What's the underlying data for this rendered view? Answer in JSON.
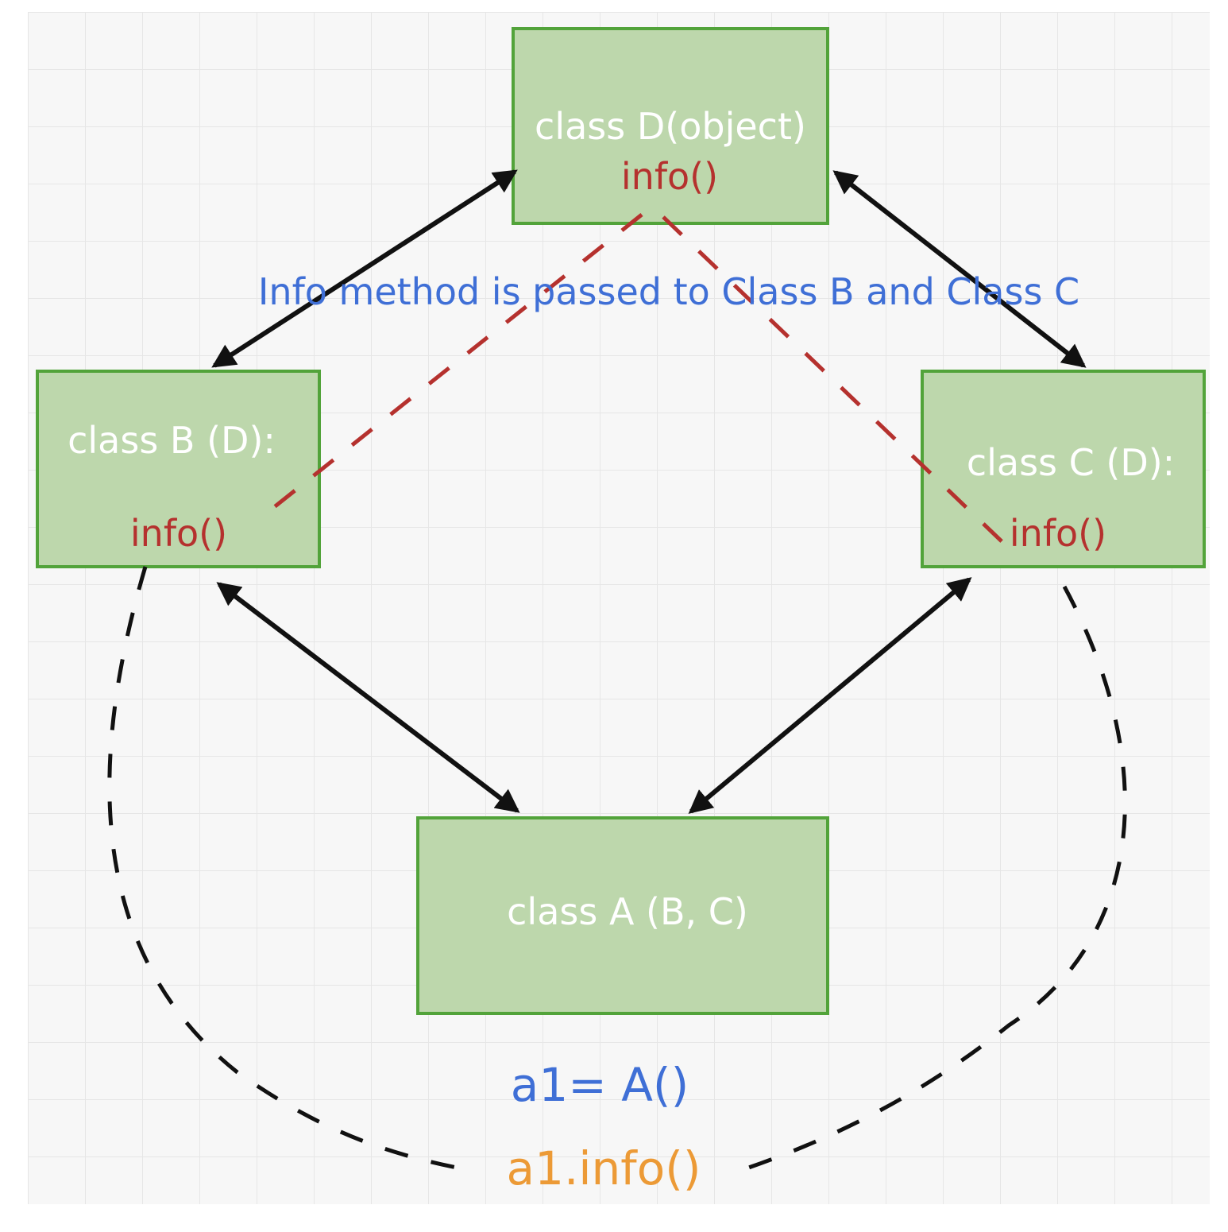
{
  "colors": {
    "box_fill": "#bdd7ac",
    "box_stroke": "#52a33a",
    "box_text": "#ffffff",
    "method_text": "#b5312e",
    "note_text": "#3f6fd6",
    "code_blue": "#3f6fd6",
    "code_orange": "#ec9a36",
    "arrow": "#111111",
    "red_dash": "#b5312e",
    "black_dash": "#111111",
    "grid_bg": "#f7f7f7",
    "grid_line": "#e6e6e6"
  },
  "boxes": {
    "d": {
      "title": "class D(object)",
      "method": "info()"
    },
    "b": {
      "title": "class B (D):",
      "method": "info()"
    },
    "c": {
      "title": "class C (D):",
      "method": "info()"
    },
    "a": {
      "title": "class A (B, C)"
    }
  },
  "annotation": "Info method is passed to Class B and Class C",
  "code": {
    "instantiate": "a1= A()",
    "call": "a1.info()"
  }
}
